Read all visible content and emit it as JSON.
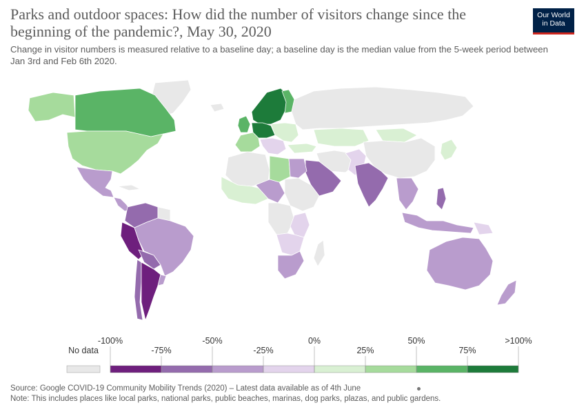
{
  "header": {
    "title": "Parks and outdoor spaces: How did the number of visitors change since the beginning of the pandemic?, May 30, 2020",
    "subtitle": "Change in visitor numbers is measured relative to a baseline day; a baseline day is the median value from the 5-week period between Jan 3rd and Feb 6th 2020.",
    "logo_line1": "Our World",
    "logo_line2": "in Data"
  },
  "legend": {
    "no_data_label": "No data",
    "boundary_labels": [
      "-100%",
      "-50%",
      "0%",
      "50%",
      ">100%"
    ],
    "mid_labels": [
      "-75%",
      "-25%",
      "25%",
      "75%"
    ],
    "colors": [
      "#6e1f7d",
      "#946bad",
      "#b99ccd",
      "#e3d4ec",
      "#d9f0d3",
      "#a6db9c",
      "#5ab466",
      "#1d7b3a"
    ],
    "no_data_color": "#e8e8e8"
  },
  "palette": {
    "no_data": "#e8e8e8",
    "v_m100_m75": "#6e1f7d",
    "v_m75_m50": "#946bad",
    "v_m50_m25": "#b99ccd",
    "v_m25_0": "#e3d4ec",
    "v_0_25": "#d9f0d3",
    "v_25_50": "#a6db9c",
    "v_50_75": "#5ab466",
    "v_75_100": "#1d7b3a"
  },
  "footer": {
    "source": "Source: Google COVID-19 Community Mobility Trends (2020) – Latest data available as of 4th June",
    "note": "Note: This includes places like local parks, national parks, public beaches, marinas, dog parks, plazas, and public gardens."
  }
}
